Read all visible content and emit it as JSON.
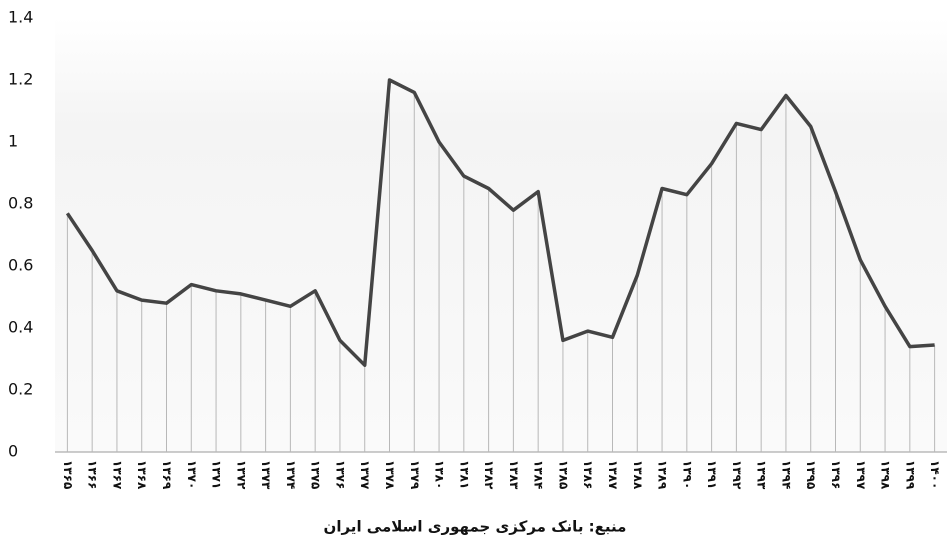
{
  "chart_data": {
    "type": "line",
    "source": "منبع: بانک مرکزی جمهوری اسلامی ایران",
    "categories": [
      "۱۳۶۵",
      "۱۳۶۶",
      "۱۳۶۷",
      "۱۳۶۸",
      "۱۳۶۹",
      "۱۳۷۰",
      "۱۳۷۱",
      "۱۳۷۲",
      "۱۳۷۳",
      "۱۳۷۴",
      "۱۳۷۵",
      "۱۳۷۶",
      "۱۳۷۷",
      "۱۳۷۸",
      "۱۳۷۹",
      "۱۳۸۰",
      "۱۳۸۱",
      "۱۳۸۲",
      "۱۳۸۳",
      "۱۳۸۴",
      "۱۳۸۵",
      "۱۳۸۶",
      "۱۳۸۷",
      "۱۳۸۸",
      "۱۳۸۹",
      "۱۳۹۰",
      "۱۳۹۱",
      "۱۳۹۲",
      "۱۳۹۳",
      "۱۳۹۴",
      "۱۳۹۵",
      "۱۳۹۶",
      "۱۳۹۷",
      "۱۳۹۸",
      "۱۳۹۹",
      "۱۴۰۰"
    ],
    "values": [
      0.77,
      0.65,
      0.52,
      0.49,
      0.48,
      0.54,
      0.52,
      0.51,
      0.49,
      0.47,
      0.52,
      0.36,
      0.28,
      1.2,
      1.16,
      1.0,
      0.89,
      0.85,
      0.78,
      0.84,
      0.36,
      0.39,
      0.37,
      0.57,
      0.85,
      0.83,
      0.93,
      1.06,
      1.04,
      1.15,
      1.05,
      0.84,
      0.62,
      0.47,
      0.34,
      0.345
    ],
    "color": "#444444",
    "ylim": [
      0,
      1.4
    ],
    "yticks": [
      0,
      0.2,
      0.4,
      0.6,
      0.8,
      1,
      1.2,
      1.4
    ]
  }
}
